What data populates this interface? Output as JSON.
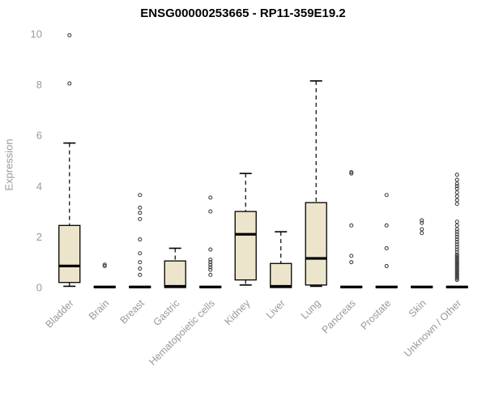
{
  "chart_data": {
    "type": "boxplot",
    "title": "ENSG00000253665 - RP11-359E19.2",
    "ylabel": "Expression",
    "xlabel": "",
    "ylim": [
      0,
      10
    ],
    "yticks": [
      0,
      2,
      4,
      6,
      8,
      10
    ],
    "grid": false,
    "legend": "none",
    "colors": {
      "box_fill": "#ede5cb",
      "box_stroke": "#000000",
      "median": "#000000",
      "whisker": "#000000",
      "outlier": "#444444",
      "axis_text": "#999999",
      "title_text": "#000000"
    },
    "categories": [
      "Bladder",
      "Brain",
      "Breast",
      "Gastric",
      "Hematopoietic cells",
      "Kidney",
      "Liver",
      "Lung",
      "Pancreas",
      "Prostate",
      "Skin",
      "Unknown / Other"
    ],
    "boxes": [
      {
        "category": "Bladder",
        "low": 0.05,
        "q1": 0.2,
        "median": 0.85,
        "q3": 2.45,
        "high": 5.7,
        "outliers": [
          8.05,
          9.95
        ]
      },
      {
        "category": "Brain",
        "low": 0,
        "q1": 0,
        "median": 0.02,
        "q3": 0.05,
        "high": 0.05,
        "outliers": [
          0.85,
          0.9
        ]
      },
      {
        "category": "Breast",
        "low": 0,
        "q1": 0,
        "median": 0.02,
        "q3": 0.05,
        "high": 0.05,
        "outliers": [
          0.5,
          0.75,
          1.0,
          1.35,
          1.9,
          2.7,
          2.95,
          3.15,
          3.65
        ]
      },
      {
        "category": "Gastric",
        "low": 0,
        "q1": 0,
        "median": 0.05,
        "q3": 1.05,
        "high": 1.55,
        "outliers": []
      },
      {
        "category": "Hematopoietic cells",
        "low": 0,
        "q1": 0,
        "median": 0.02,
        "q3": 0.05,
        "high": 0.05,
        "outliers": [
          0.5,
          0.7,
          0.8,
          0.9,
          1.0,
          1.1,
          1.5,
          3.0,
          3.55
        ]
      },
      {
        "category": "Kidney",
        "low": 0.1,
        "q1": 0.3,
        "median": 2.1,
        "q3": 3.0,
        "high": 4.5,
        "outliers": []
      },
      {
        "category": "Liver",
        "low": 0,
        "q1": 0,
        "median": 0.05,
        "q3": 0.95,
        "high": 2.2,
        "outliers": []
      },
      {
        "category": "Lung",
        "low": 0.05,
        "q1": 0.1,
        "median": 1.15,
        "q3": 3.35,
        "high": 8.15,
        "outliers": []
      },
      {
        "category": "Pancreas",
        "low": 0,
        "q1": 0,
        "median": 0.02,
        "q3": 0.05,
        "high": 0.05,
        "outliers": [
          1.0,
          1.25,
          2.45,
          4.5,
          4.55
        ]
      },
      {
        "category": "Prostate",
        "low": 0,
        "q1": 0,
        "median": 0.02,
        "q3": 0.05,
        "high": 0.05,
        "outliers": [
          0.85,
          1.55,
          2.45,
          3.65
        ]
      },
      {
        "category": "Skin",
        "low": 0,
        "q1": 0,
        "median": 0.02,
        "q3": 0.05,
        "high": 0.05,
        "outliers": [
          2.15,
          2.3,
          2.55,
          2.65
        ]
      },
      {
        "category": "Unknown / Other",
        "low": 0,
        "q1": 0,
        "median": 0.02,
        "q3": 0.05,
        "high": 0.05,
        "outliers": [
          0.3,
          0.35,
          0.4,
          0.45,
          0.5,
          0.55,
          0.6,
          0.65,
          0.7,
          0.75,
          0.8,
          0.85,
          0.9,
          0.95,
          1.0,
          1.05,
          1.1,
          1.15,
          1.2,
          1.25,
          1.3,
          1.4,
          1.5,
          1.6,
          1.7,
          1.8,
          1.9,
          2.0,
          2.1,
          2.2,
          2.3,
          2.45,
          2.6,
          3.3,
          3.45,
          3.6,
          3.75,
          3.9,
          4.0,
          4.1,
          4.25,
          4.45
        ]
      }
    ]
  }
}
